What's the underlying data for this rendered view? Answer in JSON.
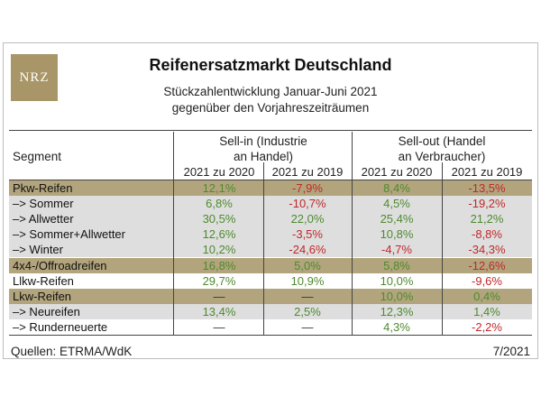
{
  "logo": {
    "text": "NRZ"
  },
  "title": "Reifenersatzmarkt Deutschland",
  "subtitle_line1": "Stückzahlentwicklung Januar-Juni 2021",
  "subtitle_line2": "gegenüber den Vorjahreszeiträumen",
  "header": {
    "segment": "Segment",
    "sell_in_line1": "Sell-in (Industrie",
    "sell_in_line2": "an Handel)",
    "sell_out_line1": "Sell-out (Handel",
    "sell_out_line2": "an Verbraucher)",
    "columns": [
      "2021 zu 2020",
      "2021 zu 2019",
      "2021 zu 2020",
      "2021 zu 2019"
    ]
  },
  "colors": {
    "positive": "#4e8a2f",
    "negative": "#c0282a",
    "category_band": "#b2a57d",
    "sub_band": "#dedede",
    "logo": "#a89668"
  },
  "rows": [
    {
      "label": "Pkw-Reifen",
      "type": "cat",
      "values": [
        "12,1%",
        "-7,9%",
        "8,4%",
        "-13,5%"
      ]
    },
    {
      "label": "–> Sommer",
      "type": "sub",
      "values": [
        "6,8%",
        "-10,7%",
        "4,5%",
        "-19,2%"
      ]
    },
    {
      "label": "–> Allwetter",
      "type": "sub",
      "values": [
        "30,5%",
        "22,0%",
        "25,4%",
        "21,2%"
      ]
    },
    {
      "label": "–> Sommer+Allwetter",
      "type": "sub",
      "values": [
        "12,6%",
        "-3,5%",
        "10,8%",
        "-8,8%"
      ]
    },
    {
      "label": "–> Winter",
      "type": "sub",
      "values": [
        "10,2%",
        "-24,6%",
        "-4,7%",
        "-34,3%"
      ]
    },
    {
      "label": "4x4-/Offroadreifen",
      "type": "cat",
      "values": [
        "16,8%",
        "5,0%",
        "5,8%",
        "-12,6%"
      ]
    },
    {
      "label": "Llkw-Reifen",
      "type": "plain",
      "values": [
        "29,7%",
        "10,9%",
        "10,0%",
        "-9,6%"
      ]
    },
    {
      "label": "Lkw-Reifen",
      "type": "cat",
      "values": [
        "—",
        "—",
        "10,0%",
        "0,4%"
      ]
    },
    {
      "label": "–> Neureifen",
      "type": "sub",
      "values": [
        "13,4%",
        "2,5%",
        "12,3%",
        "1,4%"
      ]
    },
    {
      "label": "–> Runderneuerte",
      "type": "plain",
      "values": [
        "—",
        "—",
        "4,3%",
        "-2,2%"
      ]
    }
  ],
  "footer": {
    "source": "Quellen: ETRMA/WdK",
    "date": "7/2021"
  }
}
